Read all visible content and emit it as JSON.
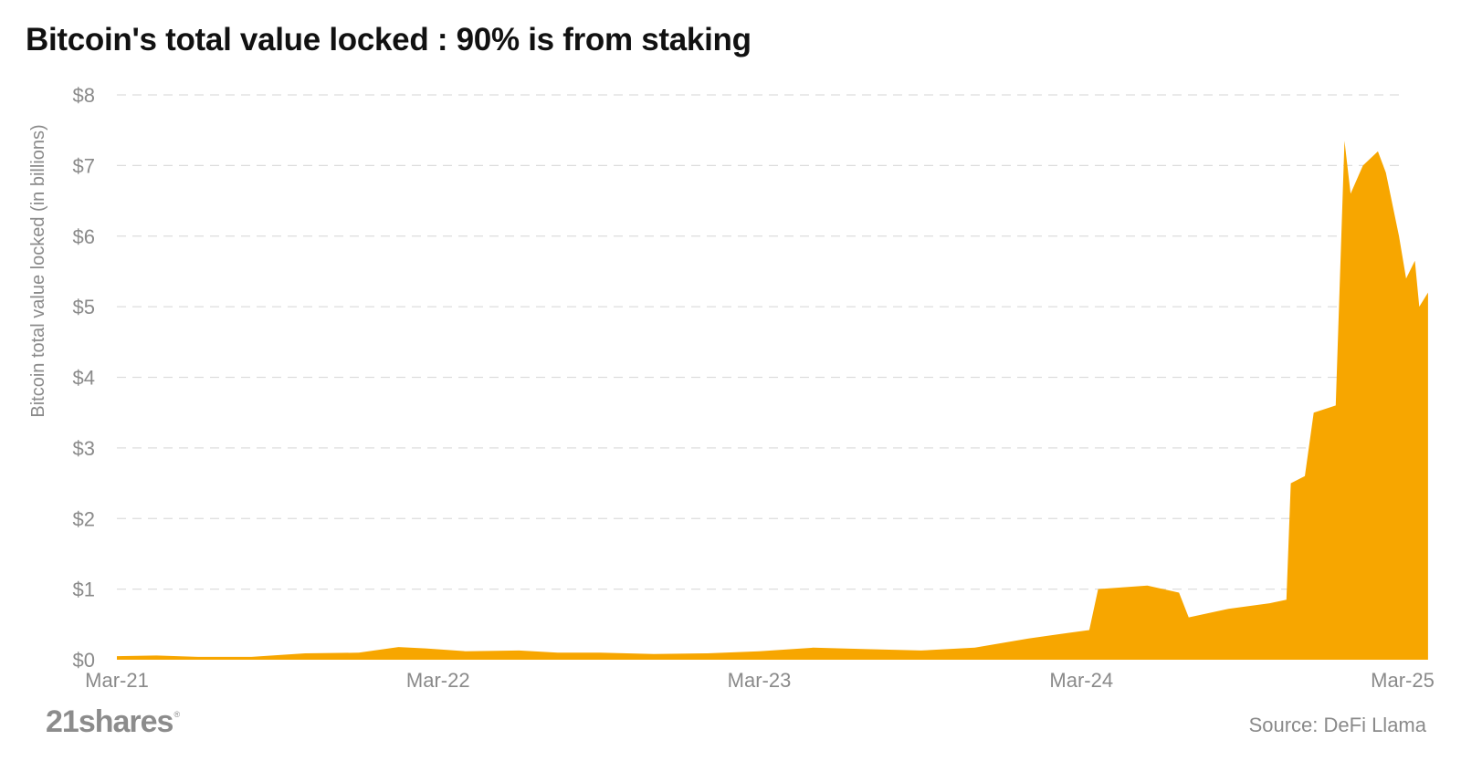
{
  "title": "Bitcoin's total value locked : 90% is from staking",
  "source": "Source: DeFi Llama",
  "logo_text": "21shares",
  "logo_mark": "®",
  "colors": {
    "area": "#F7A600",
    "grid": "#dddddd",
    "text": "#8a8a8a",
    "title": "#111111"
  },
  "chart_data": {
    "type": "area",
    "ylabel": "Bitcoin total value locked (in billions)",
    "ylim": [
      0,
      8
    ],
    "yticks": [
      {
        "value": 0,
        "label": "$0"
      },
      {
        "value": 1,
        "label": "$1"
      },
      {
        "value": 2,
        "label": "$2"
      },
      {
        "value": 3,
        "label": "$3"
      },
      {
        "value": 4,
        "label": "$4"
      },
      {
        "value": 5,
        "label": "$5"
      },
      {
        "value": 6,
        "label": "$6"
      },
      {
        "value": 7,
        "label": "$7"
      },
      {
        "value": 8,
        "label": "$8"
      }
    ],
    "xlim": [
      "2021-03-01",
      "2025-03-01"
    ],
    "xticks": [
      {
        "date": "2021-03-01",
        "label": "Mar-21"
      },
      {
        "date": "2022-03-01",
        "label": "Mar-22"
      },
      {
        "date": "2023-03-01",
        "label": "Mar-23"
      },
      {
        "date": "2024-03-01",
        "label": "Mar-24"
      },
      {
        "date": "2025-03-01",
        "label": "Mar-25"
      }
    ],
    "grid": true,
    "legend": "none",
    "series": [
      {
        "points": [
          [
            "2021-03-01",
            0.05
          ],
          [
            "2021-04-15",
            0.06
          ],
          [
            "2021-06-01",
            0.04
          ],
          [
            "2021-08-01",
            0.04
          ],
          [
            "2021-10-01",
            0.09
          ],
          [
            "2021-12-01",
            0.1
          ],
          [
            "2022-01-15",
            0.18
          ],
          [
            "2022-02-15",
            0.16
          ],
          [
            "2022-04-01",
            0.12
          ],
          [
            "2022-06-01",
            0.13
          ],
          [
            "2022-07-15",
            0.1
          ],
          [
            "2022-09-01",
            0.1
          ],
          [
            "2022-11-01",
            0.08
          ],
          [
            "2023-01-01",
            0.09
          ],
          [
            "2023-03-01",
            0.12
          ],
          [
            "2023-05-01",
            0.17
          ],
          [
            "2023-07-01",
            0.15
          ],
          [
            "2023-09-01",
            0.13
          ],
          [
            "2023-11-01",
            0.17
          ],
          [
            "2024-01-01",
            0.3
          ],
          [
            "2024-02-15",
            0.38
          ],
          [
            "2024-03-10",
            0.42
          ],
          [
            "2024-03-20",
            1.0
          ],
          [
            "2024-05-15",
            1.05
          ],
          [
            "2024-06-20",
            0.95
          ],
          [
            "2024-07-01",
            0.6
          ],
          [
            "2024-08-15",
            0.72
          ],
          [
            "2024-10-01",
            0.8
          ],
          [
            "2024-10-20",
            0.85
          ],
          [
            "2024-10-25",
            2.5
          ],
          [
            "2024-11-10",
            2.6
          ],
          [
            "2024-11-20",
            3.5
          ],
          [
            "2024-12-15",
            3.6
          ],
          [
            "2024-12-25",
            7.35
          ],
          [
            "2025-01-01",
            6.6
          ],
          [
            "2025-01-15",
            7.0
          ],
          [
            "2025-02-01",
            7.2
          ],
          [
            "2025-02-10",
            6.9
          ],
          [
            "2025-02-25",
            6.0
          ],
          [
            "2025-03-05",
            5.4
          ],
          [
            "2025-03-15",
            5.65
          ],
          [
            "2025-03-20",
            5.0
          ],
          [
            "2025-03-30",
            5.2
          ]
        ]
      }
    ]
  }
}
